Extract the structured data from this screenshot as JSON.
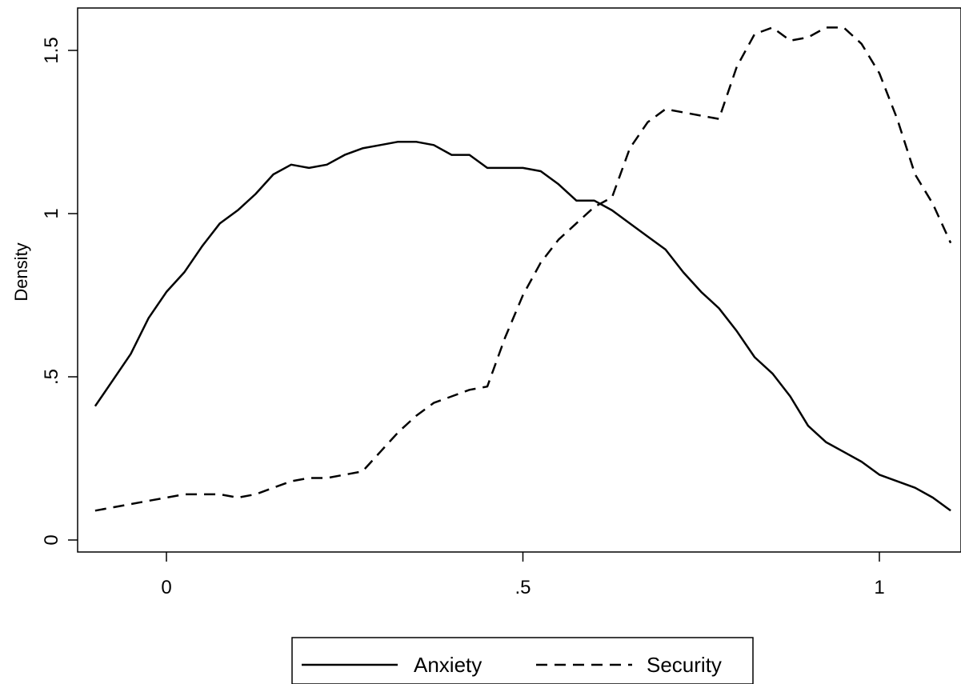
{
  "chart_data": {
    "type": "line",
    "title": "",
    "xlabel": "",
    "ylabel": "Density",
    "xlim": [
      -0.1,
      1.1
    ],
    "ylim": [
      -0.02,
      1.62
    ],
    "grid": false,
    "legend_position": "bottom",
    "x_ticks": [
      {
        "value": 0,
        "label": "0"
      },
      {
        "value": 0.5,
        "label": ".5"
      },
      {
        "value": 1,
        "label": "1"
      }
    ],
    "y_ticks": [
      {
        "value": 0,
        "label": "0"
      },
      {
        "value": 0.5,
        "label": ".5"
      },
      {
        "value": 1,
        "label": "1"
      },
      {
        "value": 1.5,
        "label": "1.5"
      }
    ],
    "series": [
      {
        "name": "Anxiety",
        "style": "solid",
        "color": "#000000",
        "x": [
          -0.1,
          -0.075,
          -0.05,
          -0.025,
          0,
          0.025,
          0.05,
          0.075,
          0.1,
          0.125,
          0.15,
          0.175,
          0.2,
          0.225,
          0.25,
          0.275,
          0.3,
          0.325,
          0.35,
          0.375,
          0.4,
          0.425,
          0.45,
          0.475,
          0.5,
          0.525,
          0.55,
          0.575,
          0.6,
          0.625,
          0.65,
          0.675,
          0.7,
          0.725,
          0.75,
          0.775,
          0.8,
          0.825,
          0.85,
          0.875,
          0.9,
          0.925,
          0.95,
          0.975,
          1.0,
          1.025,
          1.05,
          1.075,
          1.1
        ],
        "values": [
          0.41,
          0.49,
          0.57,
          0.68,
          0.76,
          0.82,
          0.9,
          0.97,
          1.01,
          1.06,
          1.12,
          1.15,
          1.14,
          1.15,
          1.18,
          1.2,
          1.21,
          1.22,
          1.22,
          1.21,
          1.18,
          1.18,
          1.14,
          1.14,
          1.14,
          1.13,
          1.09,
          1.04,
          1.04,
          1.01,
          0.97,
          0.93,
          0.89,
          0.82,
          0.76,
          0.71,
          0.64,
          0.56,
          0.51,
          0.44,
          0.35,
          0.3,
          0.27,
          0.24,
          0.2,
          0.18,
          0.16,
          0.13,
          0.09
        ]
      },
      {
        "name": "Security",
        "style": "dashed",
        "color": "#000000",
        "x": [
          -0.1,
          -0.075,
          -0.05,
          -0.025,
          0,
          0.025,
          0.05,
          0.075,
          0.1,
          0.125,
          0.15,
          0.175,
          0.2,
          0.225,
          0.25,
          0.275,
          0.3,
          0.325,
          0.35,
          0.375,
          0.4,
          0.425,
          0.45,
          0.475,
          0.5,
          0.525,
          0.55,
          0.575,
          0.6,
          0.625,
          0.65,
          0.675,
          0.7,
          0.725,
          0.75,
          0.775,
          0.8,
          0.825,
          0.85,
          0.875,
          0.9,
          0.925,
          0.95,
          0.975,
          1.0,
          1.025,
          1.05,
          1.075,
          1.1
        ],
        "values": [
          0.09,
          0.1,
          0.11,
          0.12,
          0.13,
          0.14,
          0.14,
          0.14,
          0.13,
          0.14,
          0.16,
          0.18,
          0.19,
          0.19,
          0.2,
          0.21,
          0.27,
          0.33,
          0.38,
          0.42,
          0.44,
          0.46,
          0.47,
          0.62,
          0.75,
          0.85,
          0.92,
          0.97,
          1.02,
          1.05,
          1.2,
          1.28,
          1.32,
          1.31,
          1.3,
          1.29,
          1.45,
          1.55,
          1.57,
          1.53,
          1.54,
          1.57,
          1.57,
          1.52,
          1.43,
          1.29,
          1.12,
          1.03,
          0.91
        ]
      }
    ]
  }
}
